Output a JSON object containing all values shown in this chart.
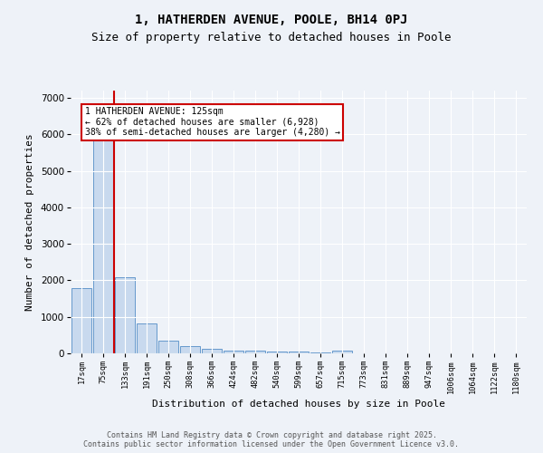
{
  "title": "1, HATHERDEN AVENUE, POOLE, BH14 0PJ",
  "subtitle": "Size of property relative to detached houses in Poole",
  "xlabel": "Distribution of detached houses by size in Poole",
  "ylabel": "Number of detached properties",
  "bar_labels": [
    "17sqm",
    "75sqm",
    "133sqm",
    "191sqm",
    "250sqm",
    "308sqm",
    "366sqm",
    "424sqm",
    "482sqm",
    "540sqm",
    "599sqm",
    "657sqm",
    "715sqm",
    "773sqm",
    "831sqm",
    "889sqm",
    "947sqm",
    "1006sqm",
    "1064sqm",
    "1122sqm",
    "1180sqm"
  ],
  "bar_values": [
    1800,
    5850,
    2080,
    830,
    340,
    195,
    115,
    80,
    65,
    50,
    40,
    30,
    85,
    10,
    5,
    5,
    5,
    5,
    5,
    5,
    5
  ],
  "bar_color": "#c8d9ee",
  "bar_edge_color": "#6699cc",
  "vline_color": "#cc0000",
  "vline_pos": 1.5,
  "annotation_text": "1 HATHERDEN AVENUE: 125sqm\n← 62% of detached houses are smaller (6,928)\n38% of semi-detached houses are larger (4,280) →",
  "annotation_box_facecolor": "#ffffff",
  "annotation_box_edgecolor": "#cc0000",
  "ylim": [
    0,
    7200
  ],
  "yticks": [
    0,
    1000,
    2000,
    3000,
    4000,
    5000,
    6000,
    7000
  ],
  "background_color": "#eef2f8",
  "grid_color": "#ffffff",
  "title_fontsize": 10,
  "subtitle_fontsize": 9,
  "footer_line1": "Contains HM Land Registry data © Crown copyright and database right 2025.",
  "footer_line2": "Contains public sector information licensed under the Open Government Licence v3.0."
}
